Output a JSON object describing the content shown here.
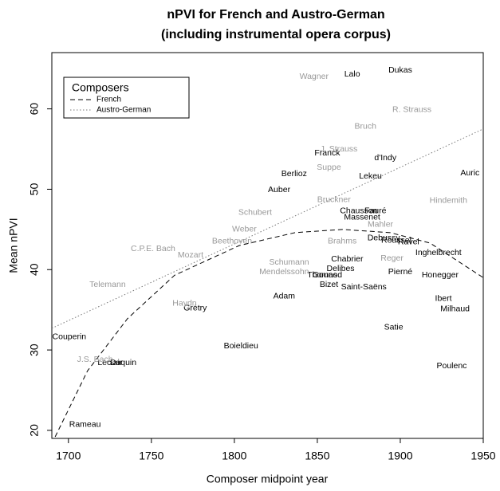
{
  "chart_data": {
    "type": "scatter",
    "title": "nPVI for French and Austro-German",
    "subtitle": "(including instrumental opera corpus)",
    "x_label": "Composer midpoint year",
    "y_label": "Mean nPVI",
    "xlim": [
      1690,
      1950
    ],
    "ylim": [
      19,
      67
    ],
    "xticks": [
      1700,
      1750,
      1800,
      1850,
      1900,
      1950
    ],
    "yticks": [
      20,
      30,
      40,
      50,
      60
    ],
    "grid": false,
    "legend_title": "Composers",
    "legend_position": "top-left",
    "series": [
      {
        "name": "French",
        "color": "#000000",
        "line_dash": "6,4",
        "labels": [
          "Lalo",
          "Dukas",
          "Franck",
          "d'Indy",
          "Berlioz",
          "Lekeu",
          "Auric",
          "Auber",
          "Chausson",
          "Fauré",
          "Massenet",
          "Debussy",
          "Roussel",
          "Ravel",
          "Inghelbrecht",
          "Chabrier",
          "Delibes",
          "Thomas",
          "Gounod",
          "Pierné",
          "Honegger",
          "Bizet",
          "Saint-Saëns",
          "Adam",
          "Ibert",
          "Grétry",
          "Milhaud",
          "Couperin",
          "Satie",
          "Boieldieu",
          "Leclair",
          "Daquin",
          "Poulenc",
          "Rameau"
        ],
        "x": [
          1871,
          1900,
          1856,
          1891,
          1836,
          1882,
          1942,
          1827,
          1875,
          1885,
          1877,
          1890,
          1897.6,
          1905,
          1923,
          1868,
          1864,
          1853,
          1856,
          1900,
          1924,
          1857,
          1878,
          1830,
          1926,
          1776.4,
          1933,
          1700.5,
          1896,
          1804,
          1725,
          1733,
          1931,
          1710
        ],
        "values": [
          64.3,
          64.8,
          54.5,
          53.9,
          51.9,
          51.6,
          52.0,
          49.9,
          47.3,
          47.3,
          46.5,
          43.9,
          43.6,
          43.4,
          42.1,
          41.3,
          40.1,
          39.3,
          39.3,
          39.7,
          39.3,
          38.1,
          37.8,
          36.7,
          36.4,
          35.2,
          35.1,
          31.6,
          32.8,
          30.5,
          28.4,
          28.4,
          28.0,
          20.7
        ],
        "trend": {
          "x": [
            1692,
            1711.5,
            1735.6,
            1764,
            1803,
            1836.5,
            1865,
            1894,
            1918,
            1950
          ],
          "values": [
            19.2,
            27.4,
            33.9,
            39.3,
            43.0,
            44.6,
            45.0,
            44.6,
            43.3,
            39.0
          ]
        }
      },
      {
        "name": "Austro-German",
        "color": "#999999",
        "line_dash": "1.5,2.5",
        "labels": [
          "Wagner",
          "R. Strauss",
          "Bruch",
          "J. Strauss",
          "Suppe",
          "Bruckner",
          "Hindemith",
          "Schubert",
          "Mahler",
          "Weber",
          "Beethoven",
          "Brahms",
          "C.P.E. Bach",
          "Mozart",
          "Reger",
          "Schumann",
          "Mendelssohn",
          "Telemann",
          "Haydn",
          "J.S. Bach"
        ],
        "x": [
          1848,
          1907,
          1879,
          1863,
          1857,
          1860,
          1929,
          1812.5,
          1888,
          1806,
          1798.6,
          1865,
          1751,
          1773.6,
          1895,
          1833,
          1830,
          1723.6,
          1770,
          1716
        ],
        "values": [
          64.0,
          59.9,
          57.8,
          55.0,
          52.7,
          48.7,
          48.6,
          47.1,
          45.6,
          45.0,
          43.5,
          43.5,
          42.6,
          41.8,
          41.4,
          40.9,
          39.7,
          38.1,
          35.8,
          28.8
        ],
        "trend": {
          "x": [
            1690,
            1950
          ],
          "values": [
            32.7,
            57.5
          ]
        }
      }
    ]
  }
}
